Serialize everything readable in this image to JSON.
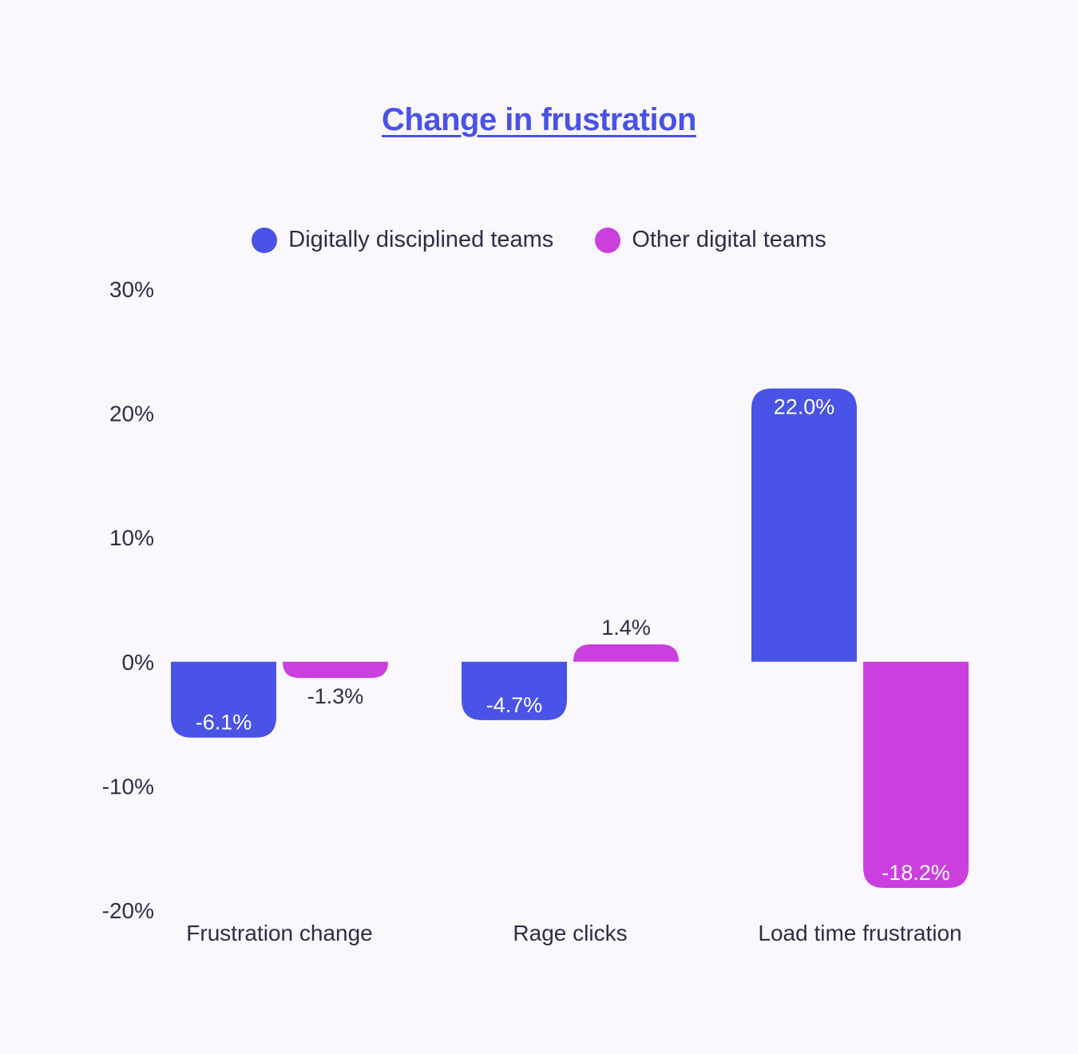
{
  "chart_data": {
    "type": "bar",
    "title": "Change in frustration",
    "categories": [
      "Frustration change",
      "Rage clicks",
      "Load time frustration"
    ],
    "series": [
      {
        "name": "Digitally disciplined teams",
        "color": "#4953e6",
        "values": [
          -6.1,
          -4.7,
          22.0
        ],
        "labels": [
          "-6.1%",
          "-4.7%",
          "22.0%"
        ]
      },
      {
        "name": "Other digital teams",
        "color": "#cc3fdf",
        "values": [
          -1.3,
          1.4,
          -18.2
        ],
        "labels": [
          "-1.3%",
          "1.4%",
          "-18.2%"
        ]
      }
    ],
    "ylim": [
      -20,
      30
    ],
    "yticks": [
      30,
      20,
      10,
      0,
      -10,
      -20
    ],
    "ytick_labels": [
      "30%",
      "20%",
      "10%",
      "0%",
      "-10%",
      "-20%"
    ],
    "xlabel": "",
    "ylabel": "",
    "grid": false,
    "legend_position": "top-center"
  },
  "colors": {
    "background": "#fbf8fd",
    "title": "#4a52e6",
    "text": "#2b2f45",
    "label_on_bar": "#ffffff"
  }
}
